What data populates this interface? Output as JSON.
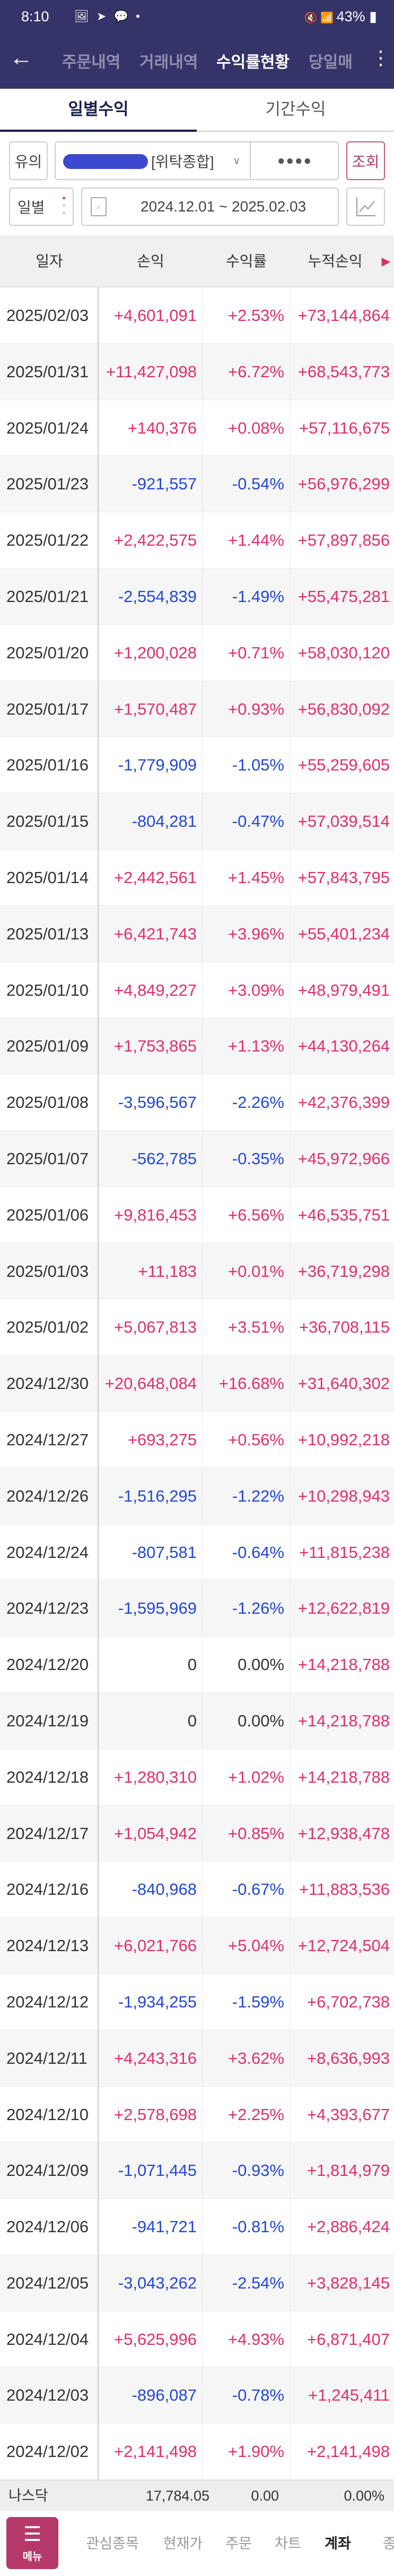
{
  "status_bar": {
    "time": "8:10",
    "battery": "43%"
  },
  "colors": {
    "header_bg": "#343468",
    "positive": "#e0306a",
    "negative": "#2347d6",
    "neutral": "#333333",
    "accent": "#b5396a"
  },
  "nav": {
    "tabs": [
      {
        "label": "주문내역"
      },
      {
        "label": "거래내역"
      },
      {
        "label": "수익률현황",
        "active": true
      },
      {
        "label": "당일매"
      }
    ]
  },
  "sub_tabs": [
    {
      "label": "일별수익",
      "active": true
    },
    {
      "label": "기간수익"
    }
  ],
  "controls": {
    "account_type": "유의",
    "account_name": "[위탁종합]",
    "password_mask": "●●●●",
    "query_button": "조회",
    "period_type": "일별",
    "date_range": "2024.12.01 ~ 2025.02.03"
  },
  "table": {
    "columns": [
      "일자",
      "손익",
      "수익률",
      "누적손익"
    ],
    "rows": [
      [
        "2025/02/03",
        "+4,601,091",
        "+2.53%",
        "+73,144,864"
      ],
      [
        "2025/01/31",
        "+11,427,098",
        "+6.72%",
        "+68,543,773"
      ],
      [
        "2025/01/24",
        "+140,376",
        "+0.08%",
        "+57,116,675"
      ],
      [
        "2025/01/23",
        "-921,557",
        "-0.54%",
        "+56,976,299"
      ],
      [
        "2025/01/22",
        "+2,422,575",
        "+1.44%",
        "+57,897,856"
      ],
      [
        "2025/01/21",
        "-2,554,839",
        "-1.49%",
        "+55,475,281"
      ],
      [
        "2025/01/20",
        "+1,200,028",
        "+0.71%",
        "+58,030,120"
      ],
      [
        "2025/01/17",
        "+1,570,487",
        "+0.93%",
        "+56,830,092"
      ],
      [
        "2025/01/16",
        "-1,779,909",
        "-1.05%",
        "+55,259,605"
      ],
      [
        "2025/01/15",
        "-804,281",
        "-0.47%",
        "+57,039,514"
      ],
      [
        "2025/01/14",
        "+2,442,561",
        "+1.45%",
        "+57,843,795"
      ],
      [
        "2025/01/13",
        "+6,421,743",
        "+3.96%",
        "+55,401,234"
      ],
      [
        "2025/01/10",
        "+4,849,227",
        "+3.09%",
        "+48,979,491"
      ],
      [
        "2025/01/09",
        "+1,753,865",
        "+1.13%",
        "+44,130,264"
      ],
      [
        "2025/01/08",
        "-3,596,567",
        "-2.26%",
        "+42,376,399"
      ],
      [
        "2025/01/07",
        "-562,785",
        "-0.35%",
        "+45,972,966"
      ],
      [
        "2025/01/06",
        "+9,816,453",
        "+6.56%",
        "+46,535,751"
      ],
      [
        "2025/01/03",
        "+11,183",
        "+0.01%",
        "+36,719,298"
      ],
      [
        "2025/01/02",
        "+5,067,813",
        "+3.51%",
        "+36,708,115"
      ],
      [
        "2024/12/30",
        "+20,648,084",
        "+16.68%",
        "+31,640,302"
      ],
      [
        "2024/12/27",
        "+693,275",
        "+0.56%",
        "+10,992,218"
      ],
      [
        "2024/12/26",
        "-1,516,295",
        "-1.22%",
        "+10,298,943"
      ],
      [
        "2024/12/24",
        "-807,581",
        "-0.64%",
        "+11,815,238"
      ],
      [
        "2024/12/23",
        "-1,595,969",
        "-1.26%",
        "+12,622,819"
      ],
      [
        "2024/12/20",
        "0",
        "0.00%",
        "+14,218,788"
      ],
      [
        "2024/12/19",
        "0",
        "0.00%",
        "+14,218,788"
      ],
      [
        "2024/12/18",
        "+1,280,310",
        "+1.02%",
        "+14,218,788"
      ],
      [
        "2024/12/17",
        "+1,054,942",
        "+0.85%",
        "+12,938,478"
      ],
      [
        "2024/12/16",
        "-840,968",
        "-0.67%",
        "+11,883,536"
      ],
      [
        "2024/12/13",
        "+6,021,766",
        "+5.04%",
        "+12,724,504"
      ],
      [
        "2024/12/12",
        "-1,934,255",
        "-1.59%",
        "+6,702,738"
      ],
      [
        "2024/12/11",
        "+4,243,316",
        "+3.62%",
        "+8,636,993"
      ],
      [
        "2024/12/10",
        "+2,578,698",
        "+2.25%",
        "+4,393,677"
      ],
      [
        "2024/12/09",
        "-1,071,445",
        "-0.93%",
        "+1,814,979"
      ],
      [
        "2024/12/06",
        "-941,721",
        "-0.81%",
        "+2,886,424"
      ],
      [
        "2024/12/05",
        "-3,043,262",
        "-2.54%",
        "+3,828,145"
      ],
      [
        "2024/12/04",
        "+5,625,996",
        "+4.93%",
        "+6,871,407"
      ],
      [
        "2024/12/03",
        "-896,087",
        "-0.78%",
        "+1,245,411"
      ],
      [
        "2024/12/02",
        "+2,141,498",
        "+1.90%",
        "+2,141,498"
      ]
    ]
  },
  "index_ticker": {
    "name": "나스닥",
    "value": "17,784.05",
    "change": "0.00",
    "rate": "0.00%"
  },
  "bottom_nav": {
    "menu_label": "메뉴",
    "items": [
      {
        "label": "관심종목"
      },
      {
        "label": "현재가"
      },
      {
        "label": "주문"
      },
      {
        "label": "차트"
      },
      {
        "label": "계좌",
        "active": true
      },
      {
        "label": "종"
      }
    ]
  }
}
